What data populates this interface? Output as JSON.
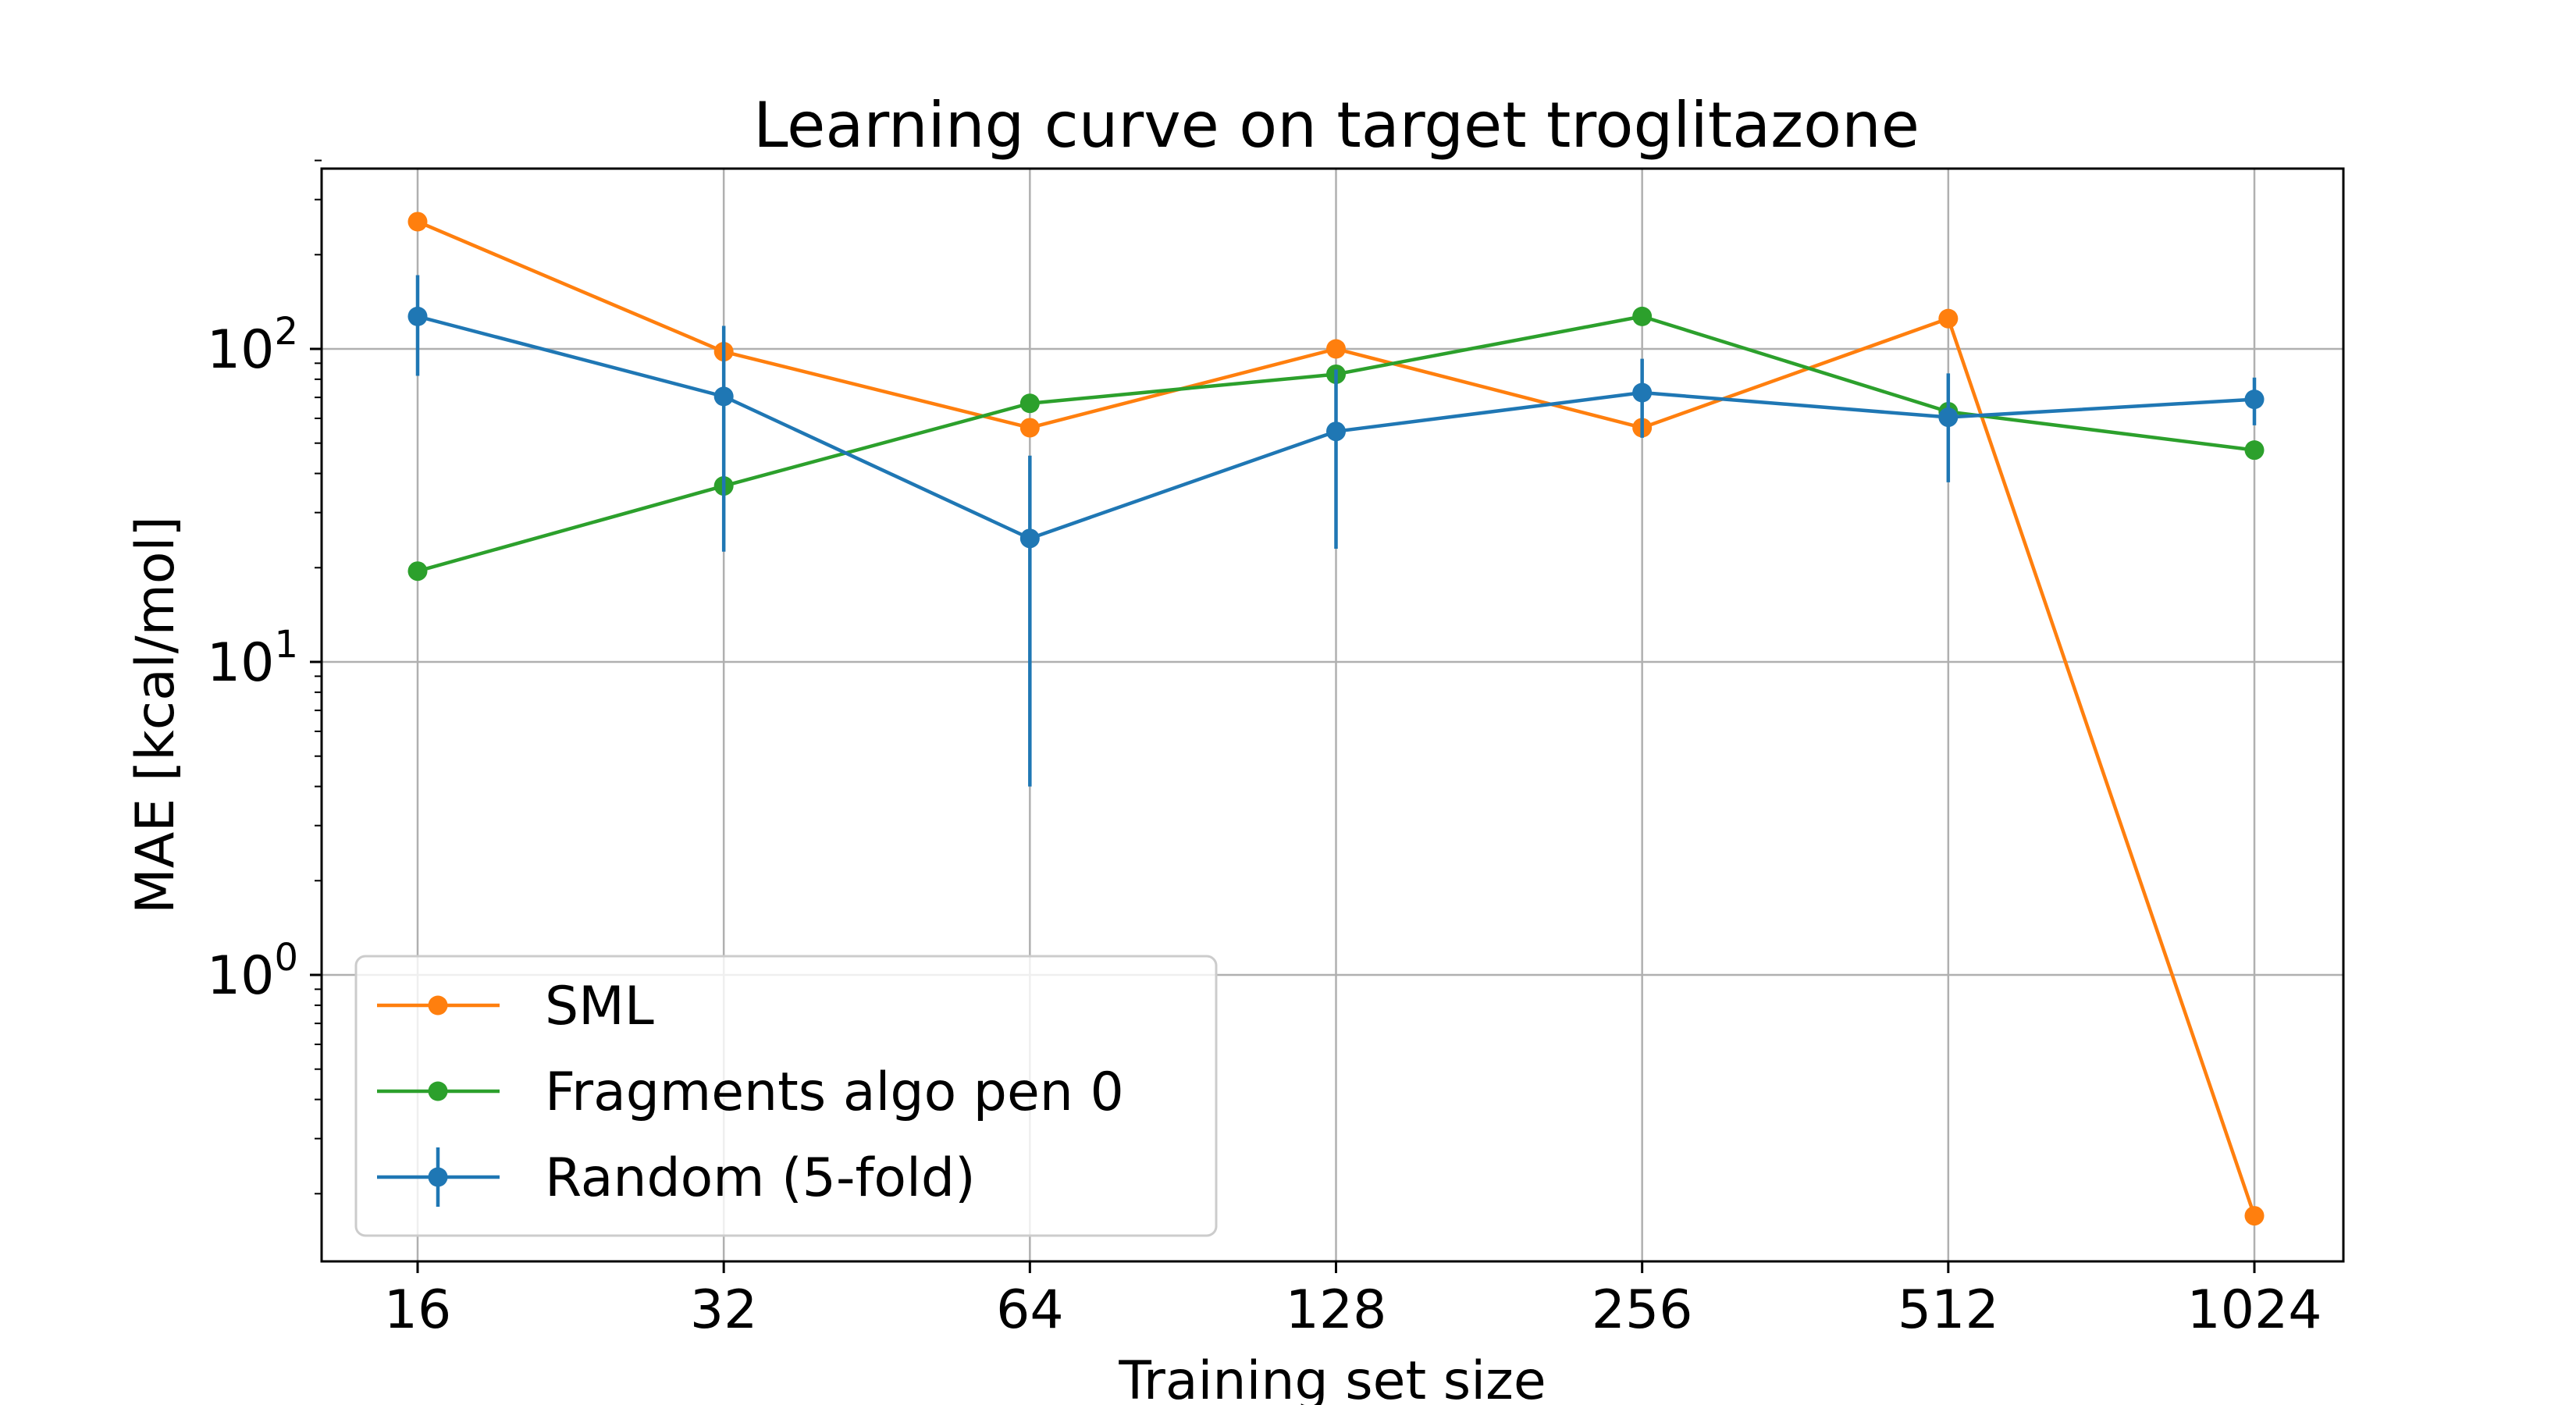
{
  "chart_data": {
    "type": "line",
    "title": "Learning curve on target troglitazone",
    "xlabel": "Training set size",
    "ylabel": "MAE [kcal/mol]",
    "x_scale": "log2",
    "y_scale": "log10",
    "x": [
      16,
      32,
      64,
      128,
      256,
      512,
      1024
    ],
    "x_tick_labels": [
      "16",
      "32",
      "64",
      "128",
      "256",
      "512",
      "1024"
    ],
    "y_ticks": [
      {
        "value": 1,
        "base": "10",
        "exp": "0"
      },
      {
        "value": 10,
        "base": "10",
        "exp": "1"
      },
      {
        "value": 100,
        "base": "10",
        "exp": "2"
      }
    ],
    "ylim": [
      0.13,
      420
    ],
    "grid": true,
    "legend_position": "lower-left",
    "series": [
      {
        "name": "SML",
        "color": "#ff7f0e",
        "values": [
          255,
          98,
          56,
          100,
          56,
          125,
          0.17
        ]
      },
      {
        "name": "Fragments algo pen 0",
        "color": "#2ca02c",
        "values": [
          19.5,
          36.5,
          67,
          83,
          127,
          63,
          47.5
        ]
      },
      {
        "name": "Random (5-fold)",
        "color": "#1f77b4",
        "values": [
          127,
          70.5,
          24.8,
          54.5,
          72.5,
          60.5,
          69
        ],
        "errors": [
          45,
          48,
          20.8,
          31.5,
          20.5,
          23,
          12
        ]
      }
    ]
  }
}
